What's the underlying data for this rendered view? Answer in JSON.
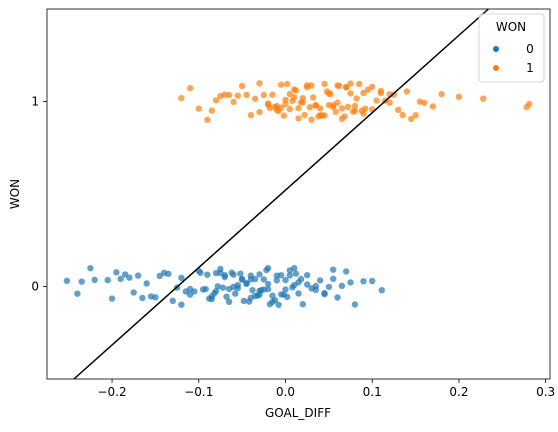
{
  "chart_data": {
    "type": "scatter",
    "title": "",
    "xlabel": "GOAL_DIFF",
    "ylabel": "WON",
    "xlim": [
      -0.275,
      0.305
    ],
    "ylim": [
      -0.5,
      1.5
    ],
    "xticks": [
      -0.2,
      -0.1,
      0.0,
      0.1,
      0.2,
      0.3
    ],
    "xtick_labels": [
      "−0.2",
      "−0.1",
      "0.0",
      "0.1",
      "0.2",
      "0.3"
    ],
    "yticks": [
      0,
      1
    ],
    "ytick_labels": [
      "0",
      "1"
    ],
    "grid": false,
    "legend": {
      "title": "WON",
      "placement": "top-right",
      "entries": [
        {
          "label": "0",
          "color": "#1f77b4"
        },
        {
          "label": "1",
          "color": "#ff7f0e"
        }
      ]
    },
    "series": [
      {
        "label": "0",
        "color": "#1f77b4",
        "y": 0,
        "jitter": 0.1,
        "x": [
          -0.252,
          -0.24,
          -0.235,
          -0.225,
          -0.22,
          -0.205,
          -0.2,
          -0.195,
          -0.19,
          -0.185,
          -0.18,
          -0.175,
          -0.17,
          -0.165,
          -0.16,
          -0.155,
          -0.15,
          -0.145,
          -0.14,
          -0.135,
          -0.13,
          -0.125,
          -0.12,
          -0.115,
          -0.11,
          -0.105,
          -0.1,
          -0.098,
          -0.095,
          -0.092,
          -0.09,
          -0.088,
          -0.085,
          -0.082,
          -0.08,
          -0.078,
          -0.075,
          -0.072,
          -0.07,
          -0.068,
          -0.065,
          -0.062,
          -0.06,
          -0.058,
          -0.055,
          -0.052,
          -0.05,
          -0.048,
          -0.045,
          -0.042,
          -0.04,
          -0.038,
          -0.035,
          -0.032,
          -0.03,
          -0.028,
          -0.025,
          -0.022,
          -0.02,
          -0.018,
          -0.015,
          -0.012,
          -0.01,
          -0.008,
          -0.005,
          -0.002,
          0.0,
          0.002,
          0.005,
          0.008,
          0.01,
          0.012,
          0.015,
          0.018,
          0.02,
          0.025,
          0.03,
          0.035,
          0.04,
          0.045,
          0.05,
          0.055,
          0.06,
          0.065,
          0.07,
          0.075,
          0.08,
          0.09,
          0.1,
          0.111,
          -0.07,
          -0.05,
          -0.03,
          -0.01,
          0.01,
          -0.06,
          -0.04,
          -0.02,
          0.0,
          -0.08,
          -0.045,
          -0.025,
          -0.015,
          0.005,
          -0.065,
          -0.035,
          -0.055,
          -0.005,
          0.015,
          -0.075,
          -0.085,
          0.025,
          0.035,
          -0.11,
          -0.12,
          0.045,
          0.055,
          -0.03,
          -0.04,
          -0.02
        ]
      },
      {
        "label": "1",
        "color": "#ff7f0e",
        "y": 1,
        "jitter": 0.1,
        "x": [
          -0.12,
          -0.11,
          -0.1,
          -0.09,
          -0.085,
          -0.08,
          -0.075,
          -0.07,
          -0.065,
          -0.06,
          -0.055,
          -0.05,
          -0.045,
          -0.04,
          -0.035,
          -0.03,
          -0.025,
          -0.02,
          -0.018,
          -0.015,
          -0.012,
          -0.01,
          -0.008,
          -0.005,
          -0.002,
          0.0,
          0.002,
          0.005,
          0.008,
          0.01,
          0.012,
          0.015,
          0.018,
          0.02,
          0.022,
          0.025,
          0.028,
          0.03,
          0.032,
          0.035,
          0.038,
          0.04,
          0.042,
          0.045,
          0.048,
          0.05,
          0.052,
          0.055,
          0.058,
          0.06,
          0.062,
          0.065,
          0.068,
          0.07,
          0.072,
          0.075,
          0.078,
          0.08,
          0.082,
          0.085,
          0.088,
          0.09,
          0.092,
          0.095,
          0.1,
          0.105,
          0.11,
          0.115,
          0.12,
          0.125,
          0.13,
          0.135,
          0.14,
          0.145,
          0.15,
          0.155,
          0.16,
          0.17,
          0.18,
          0.2,
          0.228,
          0.278,
          0.281,
          0.0,
          0.02,
          0.04,
          0.06,
          0.03,
          0.01,
          0.05,
          0.07,
          -0.01,
          0.015,
          0.035,
          0.055,
          0.025,
          0.045,
          0.065,
          -0.02,
          0.08,
          0.09,
          0.1,
          0.005,
          -0.005,
          0.075,
          -0.03,
          0.11,
          0.12
        ]
      }
    ],
    "reference_line": {
      "color": "#000000",
      "x": [
        -0.244,
        0.234
      ],
      "y": [
        -0.5,
        1.5
      ]
    }
  }
}
